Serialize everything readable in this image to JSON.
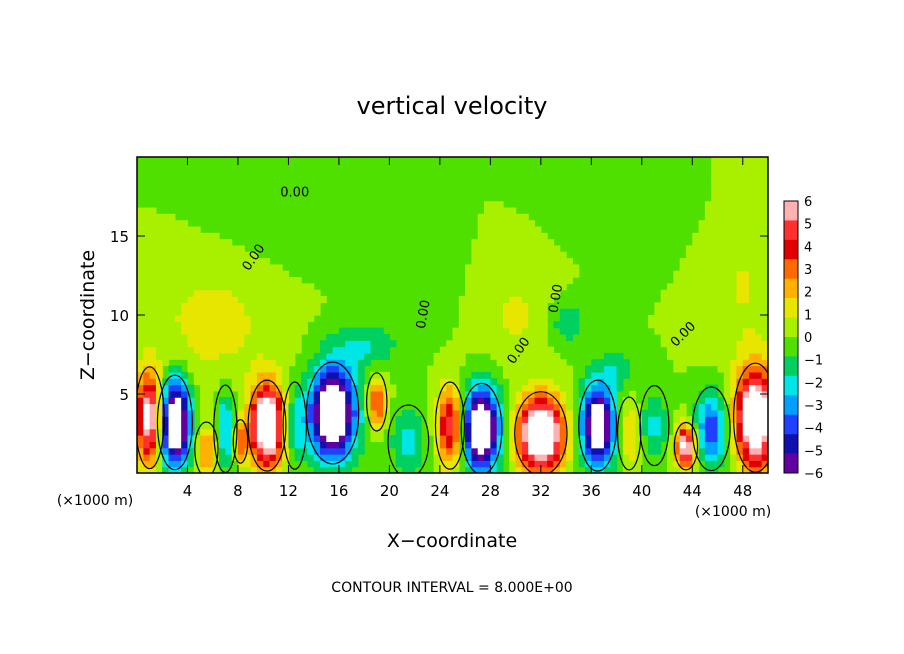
{
  "chart_data": {
    "type": "heatmap",
    "title": "vertical velocity",
    "xlabel": "X−coordinate",
    "ylabel": "Z−coordinate",
    "x_units": "(×1000 m)",
    "y_units": "(×1000 m)",
    "footer": "CONTOUR INTERVAL = 8.000E+00",
    "xlim": [
      0,
      50
    ],
    "ylim": [
      0,
      20
    ],
    "x_ticks": [
      4,
      8,
      12,
      16,
      20,
      24,
      28,
      32,
      36,
      40,
      44,
      48
    ],
    "y_ticks": [
      5,
      10,
      15
    ],
    "contour_labels": [
      "0.00",
      "0.00",
      "0.00",
      "0.00",
      "0.00",
      "0.00"
    ],
    "colorbar": {
      "min": -6,
      "max": 6,
      "ticks": [
        6,
        5,
        4,
        3,
        2,
        1,
        0,
        -1,
        -2,
        -3,
        -4,
        -5,
        -6
      ],
      "colors": [
        "#ffb0b0",
        "#ff3030",
        "#e00000",
        "#ff6a00",
        "#ffb000",
        "#e6e600",
        "#a8f000",
        "#50e000",
        "#00d060",
        "#00e6e6",
        "#00a0ff",
        "#2040ff",
        "#1010b0",
        "#6000a0"
      ]
    },
    "cells": [
      {
        "x": 1.0,
        "z": 3.5,
        "rx": 1.0,
        "rz": 2.8,
        "w": 7
      },
      {
        "x": 3.0,
        "z": 3.2,
        "rx": 1.2,
        "rz": 2.6,
        "w": -9
      },
      {
        "x": 5.5,
        "z": 1.5,
        "rx": 0.8,
        "rz": 1.5,
        "w": 3
      },
      {
        "x": 7.0,
        "z": 2.8,
        "rx": 0.8,
        "rz": 2.4,
        "w": -3
      },
      {
        "x": 8.2,
        "z": 2.0,
        "rx": 0.5,
        "rz": 1.2,
        "w": 3
      },
      {
        "x": 10.3,
        "z": 3.0,
        "rx": 1.3,
        "rz": 2.5,
        "w": 9
      },
      {
        "x": 12.5,
        "z": 3.0,
        "rx": 0.8,
        "rz": 2.4,
        "w": -2
      },
      {
        "x": 15.5,
        "z": 3.8,
        "rx": 1.8,
        "rz": 2.8,
        "w": -9
      },
      {
        "x": 19.0,
        "z": 4.5,
        "rx": 0.7,
        "rz": 1.6,
        "w": 4
      },
      {
        "x": 21.5,
        "z": 2.0,
        "rx": 1.4,
        "rz": 2.0,
        "w": -2
      },
      {
        "x": 24.8,
        "z": 3.0,
        "rx": 1.0,
        "rz": 2.4,
        "w": 5
      },
      {
        "x": 27.3,
        "z": 2.8,
        "rx": 1.4,
        "rz": 2.5,
        "w": -9
      },
      {
        "x": 32.0,
        "z": 2.5,
        "rx": 1.8,
        "rz": 2.3,
        "w": 9
      },
      {
        "x": 36.5,
        "z": 3.0,
        "rx": 1.3,
        "rz": 2.5,
        "w": -8
      },
      {
        "x": 39.0,
        "z": 2.5,
        "rx": 0.8,
        "rz": 2.0,
        "w": 2
      },
      {
        "x": 41.0,
        "z": 3.0,
        "rx": 1.0,
        "rz": 2.2,
        "w": -2
      },
      {
        "x": 43.5,
        "z": 1.7,
        "rx": 0.8,
        "rz": 1.3,
        "w": 7
      },
      {
        "x": 45.5,
        "z": 2.8,
        "rx": 1.3,
        "rz": 2.3,
        "w": -4
      },
      {
        "x": 49.0,
        "z": 3.5,
        "rx": 1.5,
        "rz": 3.0,
        "w": 9
      },
      {
        "x": 6.0,
        "z": 9.5,
        "rx": 5.0,
        "rz": 4.0,
        "w": 1.2
      },
      {
        "x": 18.0,
        "z": 8.0,
        "rx": 2.5,
        "rz": 1.5,
        "w": -1.8
      },
      {
        "x": 22.0,
        "z": 12.0,
        "rx": 3.0,
        "rz": 3.0,
        "w": -0.6
      },
      {
        "x": 30.0,
        "z": 10.0,
        "rx": 3.0,
        "rz": 3.0,
        "w": 1.0
      },
      {
        "x": 34.0,
        "z": 9.5,
        "rx": 1.5,
        "rz": 1.5,
        "w": -1.5
      },
      {
        "x": 38.0,
        "z": 6.5,
        "rx": 1.5,
        "rz": 1.2,
        "w": -1.5
      },
      {
        "x": 48.0,
        "z": 12.0,
        "rx": 3.0,
        "rz": 5.0,
        "w": 0.9
      },
      {
        "x": 12.0,
        "z": 16.0,
        "rx": 6.0,
        "rz": 3.0,
        "w": -0.5
      },
      {
        "x": 40.0,
        "z": 17.0,
        "rx": 5.0,
        "rz": 3.0,
        "w": -0.4
      }
    ]
  }
}
